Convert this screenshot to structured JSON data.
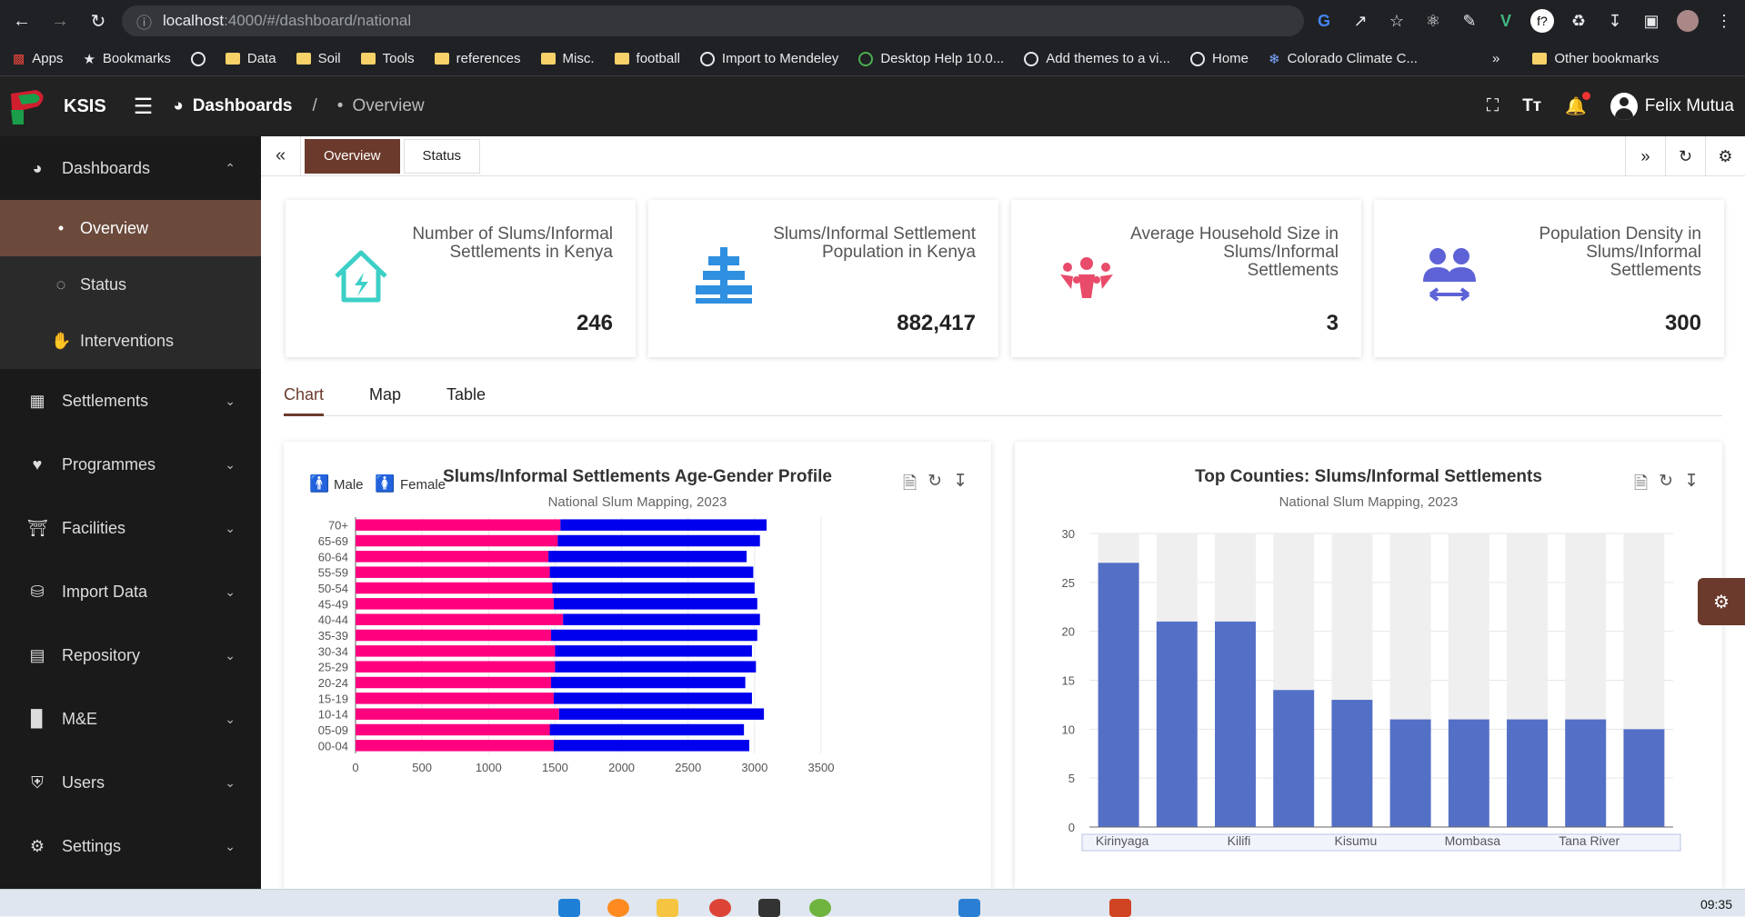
{
  "browser": {
    "url_host": "localhost",
    "url_rest": ":4000/#/dashboard/national",
    "bookmarks": [
      "Apps",
      "Bookmarks",
      "Data",
      "Soil",
      "Tools",
      "references",
      "Misc.",
      "football",
      "Import to Mendeley",
      "Desktop Help 10.0...",
      "Add themes to a vi...",
      "Home",
      "Colorado Climate C..."
    ],
    "more": "»",
    "other_bookmarks": "Other bookmarks"
  },
  "header": {
    "brand": "KSIS",
    "breadcrumb_root": "Dashboards",
    "breadcrumb_sep": "/",
    "breadcrumb_current": "Overview",
    "user": "Felix Mutua"
  },
  "sidebar": {
    "dashboards": "Dashboards",
    "sub": [
      "Overview",
      "Status",
      "Interventions"
    ],
    "items": [
      "Settlements",
      "Programmes",
      "Facilities",
      "Import Data",
      "Repository",
      "M&E",
      "Users",
      "Settings"
    ]
  },
  "tabs": [
    "Overview",
    "Status"
  ],
  "stats": [
    {
      "label": "Number of Slums/Informal Settlements in Kenya",
      "value": "246",
      "color": "#3ccfc6"
    },
    {
      "label": "Slums/Informal Settlement Population in Kenya",
      "value": "882,417",
      "color": "#2f8fe0"
    },
    {
      "label": "Average Household Size in Slums/Informal Settlements",
      "value": "3",
      "color": "#e94b6a"
    },
    {
      "label": "Population Density in Slums/Informal Settlements",
      "value": "300",
      "color": "#5d63d6"
    }
  ],
  "view_tabs": [
    "Chart",
    "Map",
    "Table"
  ],
  "clock": "09:35",
  "chart_data": [
    {
      "type": "bar",
      "orientation": "horizontal-stacked",
      "title": "Slums/Informal Settlements Age-Gender Profile",
      "subtitle": "National Slum Mapping, 2023",
      "categories": [
        "00-04",
        "05-09",
        "10-14",
        "15-19",
        "20-24",
        "25-29",
        "30-34",
        "35-39",
        "40-44",
        "45-49",
        "50-54",
        "55-59",
        "60-64",
        "65-69",
        "70+"
      ],
      "series": [
        {
          "name": "Female",
          "color": "#ff007f",
          "values": [
            1490,
            1460,
            1530,
            1490,
            1470,
            1500,
            1500,
            1470,
            1560,
            1490,
            1480,
            1460,
            1450,
            1520,
            1540
          ]
        },
        {
          "name": "Male",
          "color": "#0000ee",
          "values": [
            1470,
            1460,
            1540,
            1490,
            1460,
            1510,
            1480,
            1550,
            1480,
            1530,
            1520,
            1530,
            1490,
            1520,
            1550
          ]
        }
      ],
      "xlim": [
        0,
        3500
      ],
      "xticks": [
        0,
        500,
        1000,
        1500,
        2000,
        2500,
        3000,
        3500
      ],
      "legend": "top-left"
    },
    {
      "type": "bar",
      "title": "Top Counties: Slums/Informal Settlements",
      "subtitle": "National Slum Mapping, 2023",
      "categories": [
        "Kirinyaga",
        "",
        "Kilifi",
        "",
        "Kisumu",
        "",
        "Mombasa",
        "",
        "Tana River",
        ""
      ],
      "values": [
        27,
        21,
        21,
        14,
        13,
        11,
        11,
        11,
        11,
        10
      ],
      "ylim": [
        0,
        30
      ],
      "yticks": [
        0,
        5,
        10,
        15,
        20,
        25,
        30
      ],
      "color": "#5470c6",
      "background_bars": true
    }
  ]
}
